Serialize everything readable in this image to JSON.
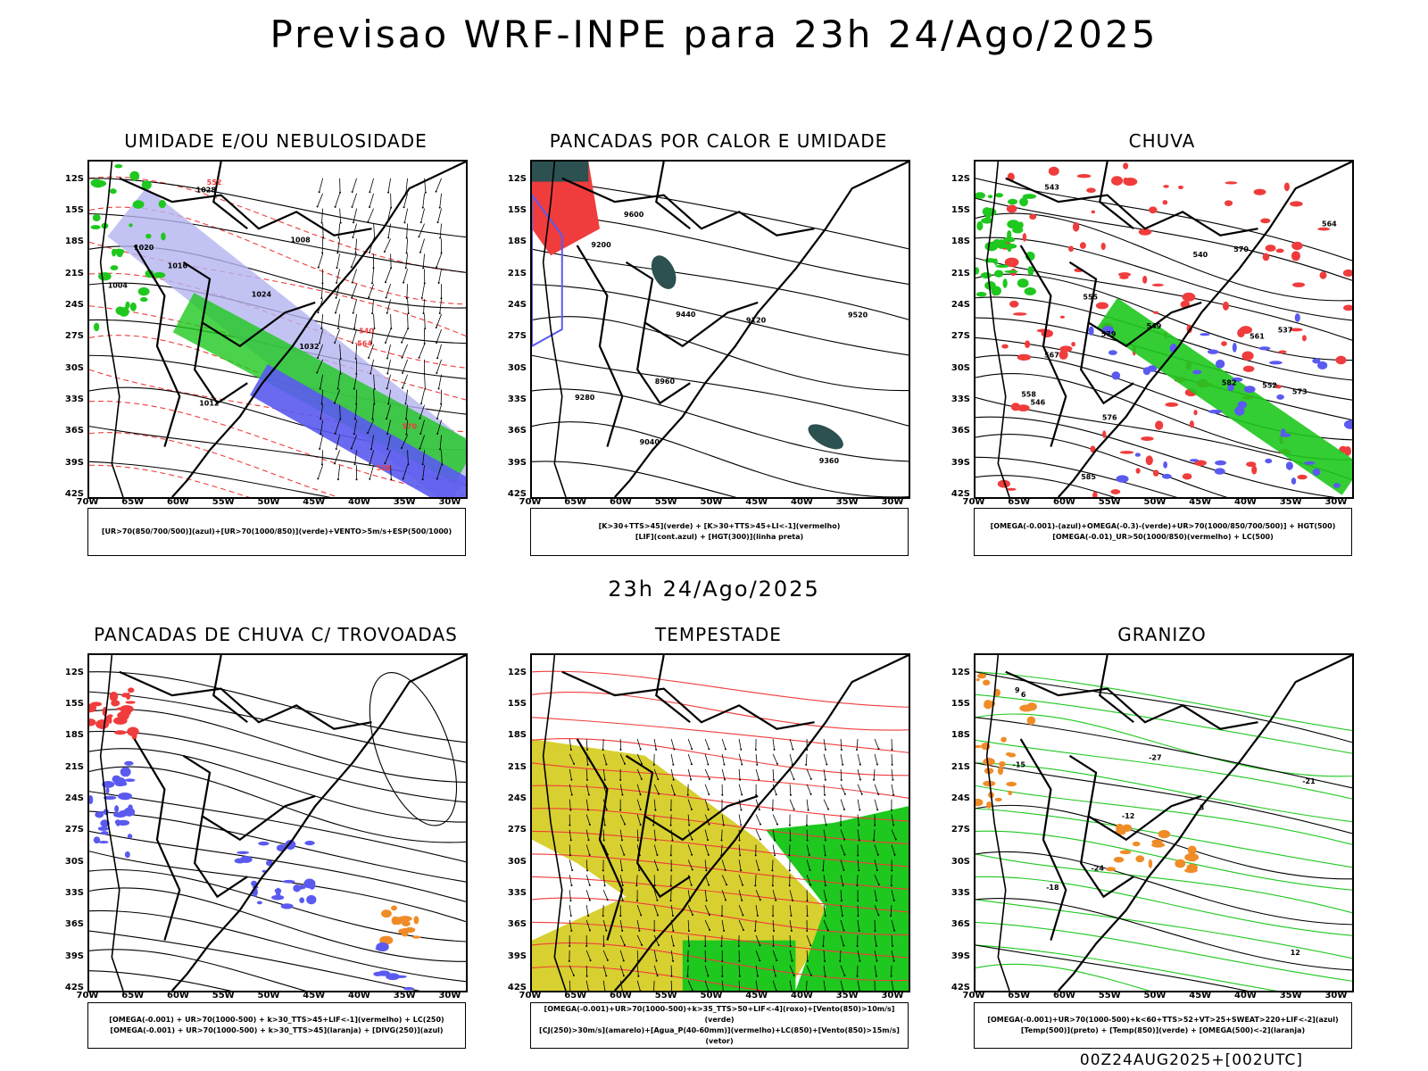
{
  "main_title": "Previsao WRF-INPE  para 23h 24/Ago/2025",
  "mid_time": "23h 24/Ago/2025",
  "footer": "00Z24AUG2025+[002UTC]",
  "colors": {
    "blue": "#5a5af0",
    "green": "#1ec81e",
    "red": "#f03c3c",
    "yellow": "#d8d030",
    "orange": "#f08c28",
    "teal": "#2d5050",
    "purple": "#b4b4f0"
  },
  "lat_ticks": [
    "12S",
    "15S",
    "18S",
    "21S",
    "24S",
    "27S",
    "30S",
    "33S",
    "36S",
    "39S",
    "42S"
  ],
  "lon_ticks": [
    "70W",
    "65W",
    "60W",
    "55W",
    "50W",
    "45W",
    "40W",
    "35W",
    "30W"
  ],
  "chart_data": [
    {
      "type": "map",
      "title": "UMIDADE E/OU NEBULOSIDADE",
      "xlim": [
        "70W",
        "30W"
      ],
      "ylim": [
        "42S",
        "12S"
      ],
      "legend_lines": [
        "[UR>70(850/700/500)](azul)+[UR>70(1000/850)](verde)+VENTO>5m/s+ESP(500/1000)"
      ],
      "contour_labels": [
        "1016",
        "1020",
        "1024",
        "1028",
        "1012",
        "1008",
        "1004",
        "1032",
        "570",
        "564",
        "552",
        "540",
        "528"
      ]
    },
    {
      "type": "map",
      "title": "PANCADAS POR CALOR E UMIDADE",
      "xlim": [
        "70W",
        "30W"
      ],
      "ylim": [
        "42S",
        "12S"
      ],
      "legend_lines": [
        "[K>30+TTS>45](verde) + [K>30+TTS>45+LI<-1](vermelho)",
        "[LIF](cont.azul) + [HGT(300)](linha preta)"
      ],
      "contour_labels": [
        "9600",
        "9520",
        "9440",
        "9360",
        "9280",
        "9200",
        "9120",
        "9040",
        "8960"
      ]
    },
    {
      "type": "map",
      "title": "CHUVA",
      "xlim": [
        "70W",
        "30W"
      ],
      "ylim": [
        "42S",
        "12S"
      ],
      "legend_lines": [
        "[OMEGA(-0.001)-(azul)+OMEGA(-0.3)-(verde)+UR>70(1000/850/700/500)] + HGT(500)",
        "[OMEGA(-0.01)_UR>50(1000/850)(vermelho) + LC(500)"
      ],
      "contour_labels": [
        "585",
        "582",
        "579",
        "576",
        "573",
        "570",
        "567",
        "564",
        "561",
        "558",
        "555",
        "552",
        "549",
        "546",
        "543",
        "540",
        "537"
      ]
    },
    {
      "type": "map",
      "title": "PANCADAS DE CHUVA C/ TROVOADAS",
      "xlim": [
        "70W",
        "30W"
      ],
      "ylim": [
        "42S",
        "12S"
      ],
      "legend_lines": [
        "[OMEGA(-0.001) + UR>70(1000-500) + k>30_TTS>45+LIF<-1](vermelho) + LC(250)",
        "[OMEGA(-0.001) + UR>70(1000-500) + k>30_TTS>45](laranja) + [DIVG(250)](azul)"
      ],
      "contour_labels": []
    },
    {
      "type": "map",
      "title": "TEMPESTADE",
      "xlim": [
        "70W",
        "30W"
      ],
      "ylim": [
        "42S",
        "12S"
      ],
      "legend_lines": [
        "[OMEGA(-0.001)+UR>70(1000-500)+k>35_TTS>50+LIF<-4](roxo)+[Vento(850)>10m/s](verde)",
        "[CJ(250)>30m/s](amarelo)+[Agua_P(40-60mm)](vermelho)+LC(850)+[Vento(850)>15m/s](vetor)"
      ],
      "contour_labels": []
    },
    {
      "type": "map",
      "title": "GRANIZO",
      "xlim": [
        "70W",
        "30W"
      ],
      "ylim": [
        "42S",
        "12S"
      ],
      "legend_lines": [
        "[OMEGA(-0.001)+UR>70(1000-500)+k<60+TTS>52+VT>25+SWEAT>220+LIF<-2](azul)",
        "[Temp(500)](preto) + [Temp(850)](verde) + [OMEGA(500)<-2](laranja)"
      ],
      "contour_labels": [
        "-12",
        "-15",
        "-18",
        "-21",
        "-24",
        "-27",
        "12",
        "9",
        "6",
        "3"
      ]
    }
  ]
}
